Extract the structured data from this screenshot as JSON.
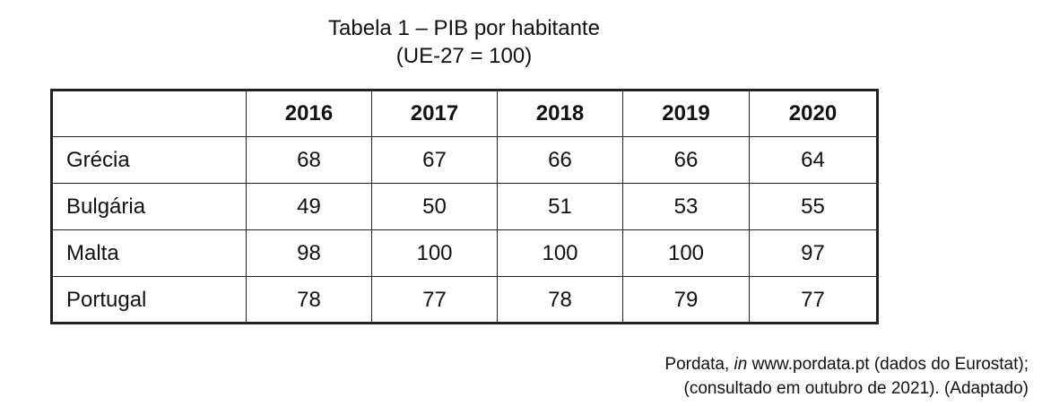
{
  "table": {
    "title_line1": "Tabela 1 – PIB por habitante",
    "title_line2": "(UE-27 = 100)",
    "columns": [
      "",
      "2016",
      "2017",
      "2018",
      "2019",
      "2020"
    ],
    "rows": [
      {
        "label": "Grécia",
        "values": [
          "68",
          "67",
          "66",
          "66",
          "64"
        ]
      },
      {
        "label": "Bulgária",
        "values": [
          "49",
          "50",
          "51",
          "53",
          "55"
        ]
      },
      {
        "label": "Malta",
        "values": [
          "98",
          "100",
          "100",
          "100",
          "97"
        ]
      },
      {
        "label": "Portugal",
        "values": [
          "78",
          "77",
          "78",
          "79",
          "77"
        ]
      }
    ]
  },
  "source": {
    "line1_prefix": "Pordata, ",
    "line1_in": "in",
    "line1_suffix": " www.pordata.pt (dados do Eurostat);",
    "line2": "(consultado em outubro de 2021). (Adaptado)"
  }
}
